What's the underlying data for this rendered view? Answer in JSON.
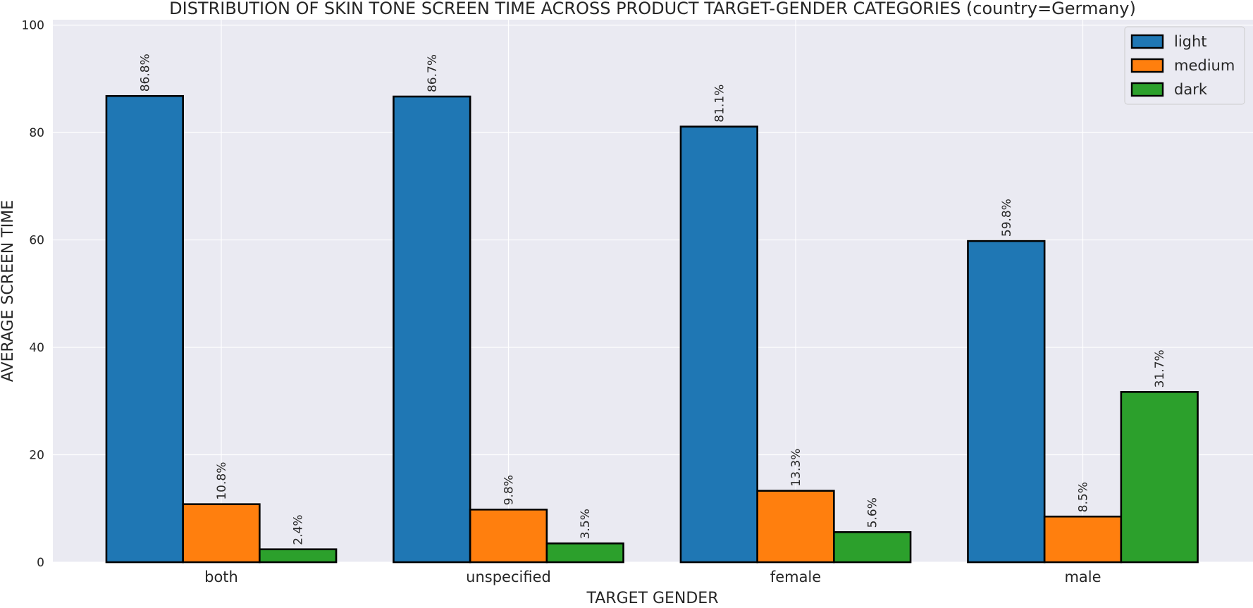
{
  "chart_data": {
    "type": "bar",
    "title": "DISTRIBUTION OF SKIN TONE SCREEN TIME ACROSS PRODUCT TARGET-GENDER CATEGORIES (country=Germany)",
    "xlabel": "TARGET GENDER",
    "ylabel": "AVERAGE SCREEN TIME",
    "categories": [
      "both",
      "unspecified",
      "female",
      "male"
    ],
    "series": [
      {
        "name": "light",
        "color": "#1f77b4",
        "values": [
          86.8,
          86.7,
          81.1,
          59.8
        ]
      },
      {
        "name": "medium",
        "color": "#ff7f0e",
        "values": [
          10.8,
          9.8,
          13.3,
          8.5
        ]
      },
      {
        "name": "dark",
        "color": "#2ca02c",
        "values": [
          2.4,
          3.5,
          5.6,
          31.7
        ]
      }
    ],
    "value_label_suffix": "%",
    "ylim": [
      0,
      101
    ],
    "yticks": [
      0,
      20,
      40,
      60,
      80,
      100
    ],
    "grid": true,
    "legend_position": "top-right",
    "background_color": "#eaeaf2",
    "grid_color": "#ffffff",
    "bar_edge_color": "#000000"
  }
}
